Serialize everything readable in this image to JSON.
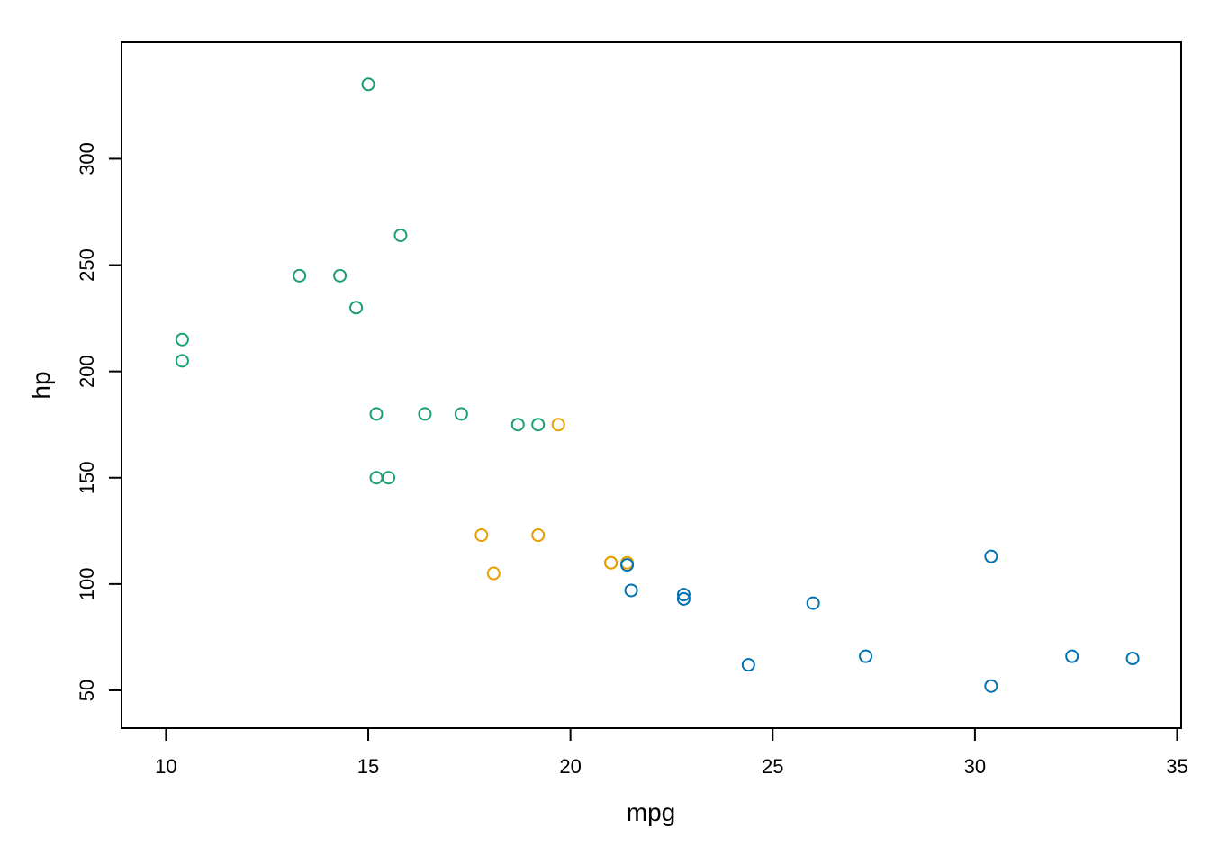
{
  "chart_data": {
    "type": "scatter",
    "title": "",
    "xlabel": "mpg",
    "ylabel": "hp",
    "xlim": [
      8.9,
      35.1
    ],
    "ylim": [
      32.2,
      354.8
    ],
    "x_ticks": [
      10,
      15,
      20,
      25,
      30,
      35
    ],
    "y_ticks": [
      50,
      100,
      150,
      200,
      250,
      300
    ],
    "grid": false,
    "legend": "none",
    "marker": "open-circle",
    "series": [
      {
        "color": "#1b9e77",
        "points": [
          {
            "x": 10.4,
            "y": 205
          },
          {
            "x": 10.4,
            "y": 215
          },
          {
            "x": 13.3,
            "y": 245
          },
          {
            "x": 14.3,
            "y": 245
          },
          {
            "x": 14.7,
            "y": 230
          },
          {
            "x": 15.0,
            "y": 335
          },
          {
            "x": 15.2,
            "y": 180
          },
          {
            "x": 15.2,
            "y": 150
          },
          {
            "x": 15.5,
            "y": 150
          },
          {
            "x": 15.8,
            "y": 264
          },
          {
            "x": 16.4,
            "y": 180
          },
          {
            "x": 17.3,
            "y": 180
          },
          {
            "x": 18.7,
            "y": 175
          },
          {
            "x": 19.2,
            "y": 175
          }
        ]
      },
      {
        "color": "#d95f02",
        "display_color": "#e69f00",
        "points": [
          {
            "x": 17.8,
            "y": 123
          },
          {
            "x": 18.1,
            "y": 105
          },
          {
            "x": 19.2,
            "y": 123
          },
          {
            "x": 19.7,
            "y": 175
          },
          {
            "x": 21.0,
            "y": 110
          },
          {
            "x": 21.0,
            "y": 110
          },
          {
            "x": 21.4,
            "y": 110
          }
        ]
      },
      {
        "color": "#0072b2",
        "points": [
          {
            "x": 21.4,
            "y": 109
          },
          {
            "x": 21.5,
            "y": 97
          },
          {
            "x": 22.8,
            "y": 93
          },
          {
            "x": 22.8,
            "y": 95
          },
          {
            "x": 24.4,
            "y": 62
          },
          {
            "x": 26.0,
            "y": 91
          },
          {
            "x": 27.3,
            "y": 66
          },
          {
            "x": 30.4,
            "y": 113
          },
          {
            "x": 30.4,
            "y": 52
          },
          {
            "x": 32.4,
            "y": 66
          },
          {
            "x": 33.9,
            "y": 65
          }
        ]
      }
    ]
  }
}
